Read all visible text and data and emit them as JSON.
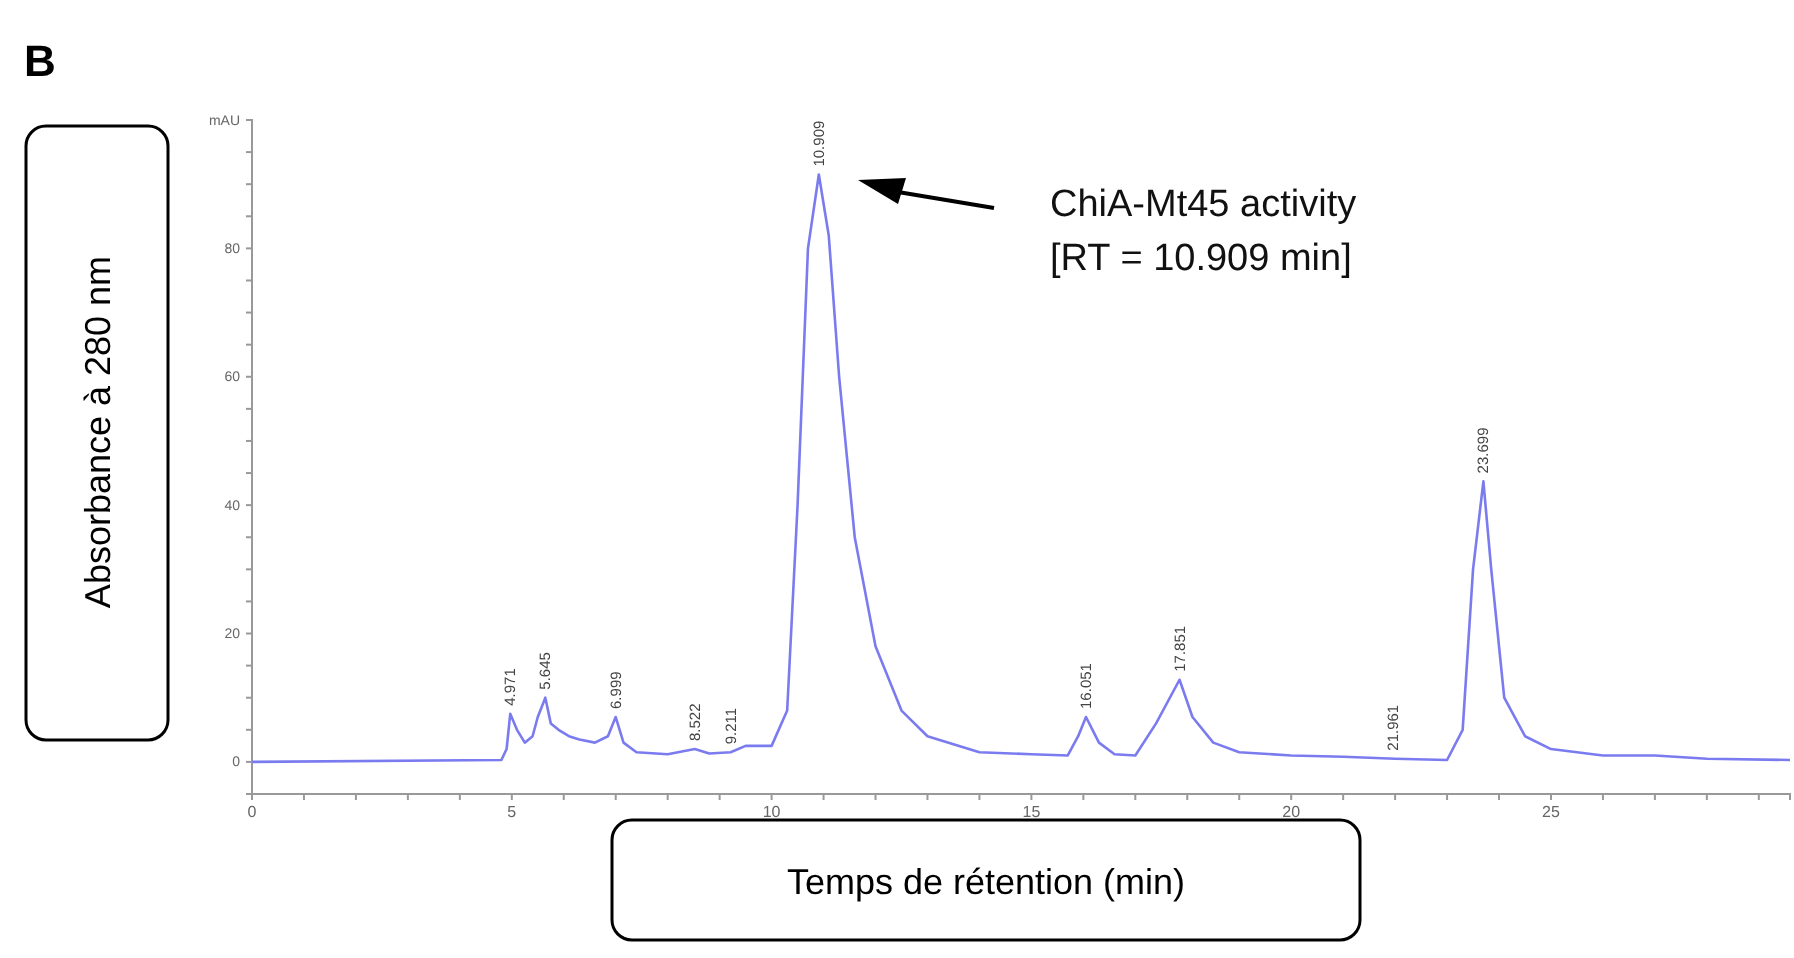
{
  "chart_data": {
    "type": "line",
    "title": "B",
    "xlabel": "Temps de rétention (min)",
    "ylabel": "Absorbance à 280 nm",
    "xlim": [
      0,
      29.6
    ],
    "ylim": [
      -5,
      100
    ],
    "xticks": [
      0,
      {
        "value": 1,
        "label": null
      },
      {
        "value": 2,
        "label": null
      },
      {
        "value": 3,
        "label": null
      },
      {
        "value": 4,
        "label": null
      },
      5,
      {
        "value": 6,
        "label": null
      },
      {
        "value": 7,
        "label": null
      },
      {
        "value": 8,
        "label": null
      },
      {
        "value": 9,
        "label": null
      },
      10,
      {
        "value": 11,
        "label": null
      },
      {
        "value": 12,
        "label": null
      },
      {
        "value": 13,
        "label": null
      },
      {
        "value": 14,
        "label": null
      },
      15,
      {
        "value": 16,
        "label": null
      },
      {
        "value": 17,
        "label": null
      },
      {
        "value": 18,
        "label": null
      },
      {
        "value": 19,
        "label": null
      },
      20,
      {
        "value": 21,
        "label": null
      },
      {
        "value": 22,
        "label": null
      },
      {
        "value": 23,
        "label": null
      },
      {
        "value": 24,
        "label": null
      },
      25,
      {
        "value": 26,
        "label": null
      },
      {
        "value": 27,
        "label": null
      },
      {
        "value": 28,
        "label": null
      },
      {
        "value": 29,
        "label": null
      }
    ],
    "yticks": [
      0,
      {
        "value": 5,
        "label": null
      },
      {
        "value": 10,
        "label": null
      },
      {
        "value": 15,
        "label": null
      },
      20,
      {
        "value": 25,
        "label": null
      },
      {
        "value": 30,
        "label": null
      },
      {
        "value": 35,
        "label": null
      },
      40,
      {
        "value": 45,
        "label": null
      },
      {
        "value": 50,
        "label": null
      },
      {
        "value": 55,
        "label": null
      },
      60,
      {
        "value": 65,
        "label": null
      },
      {
        "value": 70,
        "label": null
      },
      {
        "value": 75,
        "label": null
      },
      80,
      {
        "value": 85,
        "label": null
      },
      {
        "value": 90,
        "label": null
      },
      {
        "value": 95,
        "label": null
      },
      {
        "value": 100,
        "label": "mAU"
      }
    ],
    "grid": false,
    "marker": "none",
    "line_style": "solid",
    "x": [
      0,
      4.8,
      4.9,
      4.97,
      5.1,
      5.25,
      5.4,
      5.5,
      5.645,
      5.75,
      5.9,
      6.1,
      6.3,
      6.6,
      6.85,
      6.999,
      7.15,
      7.4,
      8,
      8.522,
      8.8,
      9.211,
      9.5,
      10,
      10.3,
      10.5,
      10.7,
      10.909,
      11.1,
      11.3,
      11.6,
      12,
      12.5,
      13,
      14,
      15,
      15.7,
      15.9,
      16.051,
      16.3,
      16.6,
      17,
      17.4,
      17.851,
      18.1,
      18.5,
      19,
      20,
      21,
      22,
      23,
      23.3,
      23.5,
      23.699,
      23.85,
      24.1,
      24.5,
      25,
      26,
      27,
      28,
      29.6
    ],
    "series": [
      {
        "color": "#7b7bf0",
        "values": [
          0,
          0.3,
          2,
          7.5,
          5,
          3,
          4,
          7,
          10,
          6,
          5,
          4,
          3.5,
          3,
          4,
          7,
          3,
          1.5,
          1.2,
          2,
          1.3,
          1.5,
          2.5,
          2.5,
          8,
          40,
          80,
          91.5,
          82,
          60,
          35,
          18,
          8,
          4,
          1.5,
          1.2,
          1,
          4,
          7,
          3,
          1.2,
          1,
          6,
          12.8,
          7,
          3,
          1.5,
          1,
          0.8,
          0.5,
          0.3,
          5,
          30,
          43.7,
          30,
          10,
          4,
          2,
          1,
          1,
          0.5,
          0.3
        ]
      }
    ],
    "annotations": [
      {
        "text": "4.971",
        "x": 4.971,
        "y": 7.5
      },
      {
        "text": "5.645",
        "x": 5.645,
        "y": 10
      },
      {
        "text": "6.999",
        "x": 6.999,
        "y": 7
      },
      {
        "text": "8.522",
        "x": 8.522,
        "y": 2
      },
      {
        "text": "9.211",
        "x": 9.211,
        "y": 1.5
      },
      {
        "text": "10.909",
        "x": 10.909,
        "y": 91.5
      },
      {
        "text": "16.051",
        "x": 16.051,
        "y": 7
      },
      {
        "text": "17.851",
        "x": 17.851,
        "y": 12.8
      },
      {
        "text": "21.961",
        "x": 21.961,
        "y": 0.5
      },
      {
        "text": "23.699",
        "x": 23.699,
        "y": 43.7
      },
      "ChiA-Mt45 activity\n[RT = 10.909 min]"
    ]
  }
}
